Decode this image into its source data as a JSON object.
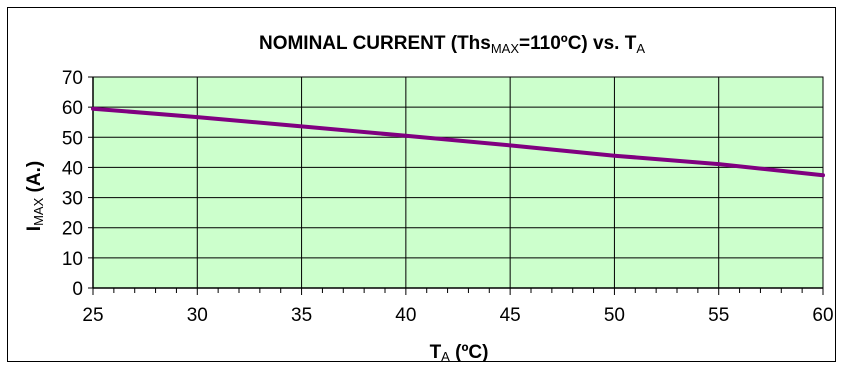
{
  "chart_data": {
    "type": "line",
    "title": {
      "main": "NOMINAL CURRENT (Ths",
      "sub": "MAX",
      "mid": "=110ºC) vs. T",
      "sub2": "A"
    },
    "xlabel": {
      "main": "T",
      "sub": "A",
      "rest": " (ºC)"
    },
    "ylabel": {
      "main": "I",
      "sub": "MAX",
      "rest": " (A.)"
    },
    "xlim": [
      25,
      60
    ],
    "ylim": [
      0,
      70
    ],
    "x_ticks": [
      25,
      30,
      35,
      40,
      45,
      50,
      55,
      60
    ],
    "y_ticks": [
      0,
      10,
      20,
      30,
      40,
      50,
      60,
      70
    ],
    "x_minor_step": 1,
    "grid": true,
    "legend": "none",
    "series": [
      {
        "x": [
          25,
          30,
          35,
          40,
          45,
          50,
          55,
          60
        ],
        "y": [
          59.5,
          56.7,
          53.6,
          50.5,
          47.3,
          43.9,
          41.1,
          37.4
        ]
      }
    ],
    "colors": {
      "plot_bg": "#ccffcc",
      "line": "#800080",
      "grid": "#000000"
    }
  }
}
